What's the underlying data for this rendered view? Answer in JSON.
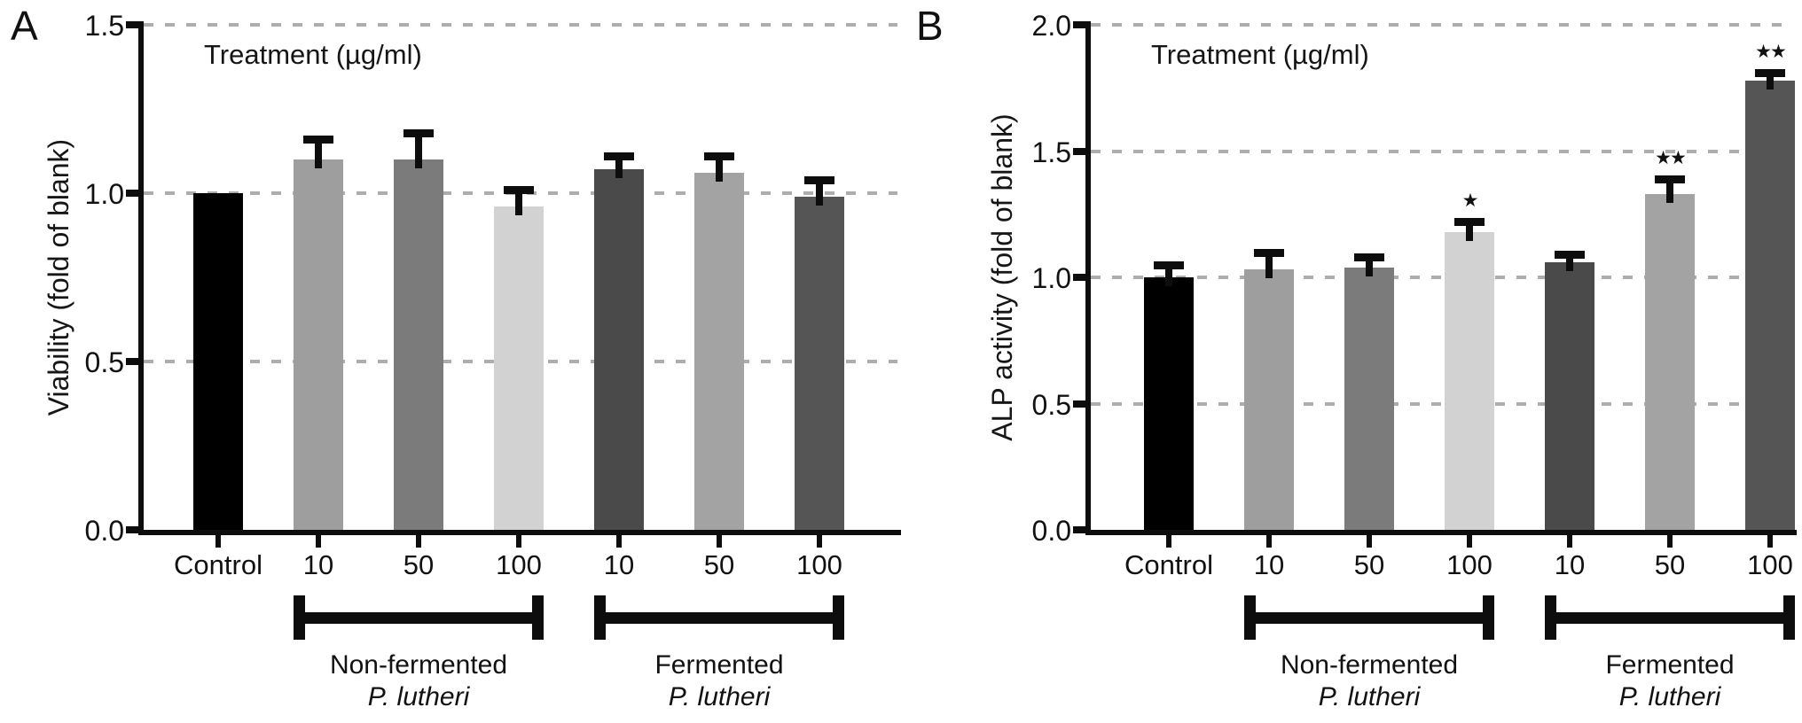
{
  "chart_data": [
    {
      "type": "bar",
      "panel_label": "A",
      "title": "Treatment (µg/ml)",
      "ylabel": "Viability (fold of blank)",
      "xlabel": "",
      "categories": [
        "Control",
        "10",
        "50",
        "100",
        "10",
        "50",
        "100"
      ],
      "values": [
        1.0,
        1.1,
        1.1,
        0.96,
        1.07,
        1.06,
        0.99
      ],
      "errors": [
        0,
        0.06,
        0.08,
        0.05,
        0.04,
        0.05,
        0.05
      ],
      "significance": [
        "",
        "",
        "",
        "",
        "",
        "",
        ""
      ],
      "bar_colors": [
        "#000000",
        "#9e9e9e",
        "#7b7b7b",
        "#d2d2d2",
        "#4a4a4a",
        "#a3a3a3",
        "#555555"
      ],
      "ylim": [
        0,
        1.5
      ],
      "yticks": [
        "0.0",
        "0.5",
        "1.0",
        "1.5"
      ],
      "grid": "horizontal-dashed",
      "legend": null,
      "groups": [
        {
          "line1": "Non-fermented",
          "line2": "P. lutheri",
          "start_index": 1,
          "end_index": 3
        },
        {
          "line1": "Fermented",
          "line2": "P. lutheri",
          "start_index": 4,
          "end_index": 6
        }
      ]
    },
    {
      "type": "bar",
      "panel_label": "B",
      "title": "Treatment (µg/ml)",
      "ylabel": "ALP activity (fold of blank)",
      "xlabel": "",
      "categories": [
        "Control",
        "10",
        "50",
        "100",
        "10",
        "50",
        "100"
      ],
      "values": [
        1.0,
        1.03,
        1.04,
        1.18,
        1.06,
        1.33,
        1.78
      ],
      "errors": [
        0.05,
        0.07,
        0.04,
        0.04,
        0.03,
        0.06,
        0.03
      ],
      "significance": [
        "",
        "",
        "",
        "*",
        "",
        "**",
        "**"
      ],
      "bar_colors": [
        "#000000",
        "#9e9e9e",
        "#7b7b7b",
        "#d2d2d2",
        "#4a4a4a",
        "#a3a3a3",
        "#555555"
      ],
      "ylim": [
        0,
        2.0
      ],
      "yticks": [
        "0.0",
        "0.5",
        "1.0",
        "1.5",
        "2.0"
      ],
      "grid": "horizontal-dashed",
      "legend": null,
      "groups": [
        {
          "line1": "Non-fermented",
          "line2": "P. lutheri",
          "start_index": 1,
          "end_index": 3
        },
        {
          "line1": "Fermented",
          "line2": "P. lutheri",
          "start_index": 4,
          "end_index": 6
        }
      ]
    }
  ]
}
